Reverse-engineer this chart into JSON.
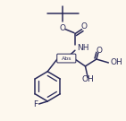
{
  "bg_color": "#fdf8ee",
  "line_color": "#2a2a5a",
  "line_width": 1.1,
  "font_size": 6.5,
  "font_color": "#2a2a5a",
  "figsize": [
    1.41,
    1.35
  ],
  "dpi": 100,
  "xlim": [
    0,
    141
  ],
  "ylim": [
    0,
    135
  ]
}
